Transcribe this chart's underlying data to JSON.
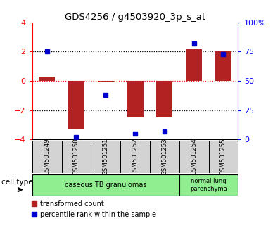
{
  "title": "GDS4256 / g4503920_3p_s_at",
  "samples": [
    "GSM501249",
    "GSM501250",
    "GSM501251",
    "GSM501252",
    "GSM501253",
    "GSM501254",
    "GSM501255"
  ],
  "transformed_count": [
    0.3,
    -3.3,
    -0.05,
    -2.5,
    -2.5,
    2.15,
    2.0
  ],
  "percentile_rank": [
    75,
    2,
    38,
    5,
    7,
    82,
    73
  ],
  "bar_color": "#b22222",
  "dot_color": "#0000cc",
  "ylim_left": [
    -4,
    4
  ],
  "ylim_right": [
    0,
    100
  ],
  "yticks_left": [
    -4,
    -2,
    0,
    2,
    4
  ],
  "yticks_right": [
    0,
    25,
    50,
    75,
    100
  ],
  "ytick_labels_right": [
    "0",
    "25",
    "50",
    "75",
    "100%"
  ],
  "hlines_black": [
    -2,
    2
  ],
  "hline_red": 0,
  "cell_type_label": "cell type",
  "group1_label": "caseous TB granulomas",
  "group1_indices": [
    0,
    4
  ],
  "group2_label": "normal lung\nparenchyma",
  "group2_indices": [
    5,
    6
  ],
  "group_color": "#90ee90",
  "sample_box_color": "#d3d3d3",
  "legend_items": [
    {
      "color": "#b22222",
      "label": "transformed count"
    },
    {
      "color": "#0000cc",
      "label": "percentile rank within the sample"
    }
  ]
}
